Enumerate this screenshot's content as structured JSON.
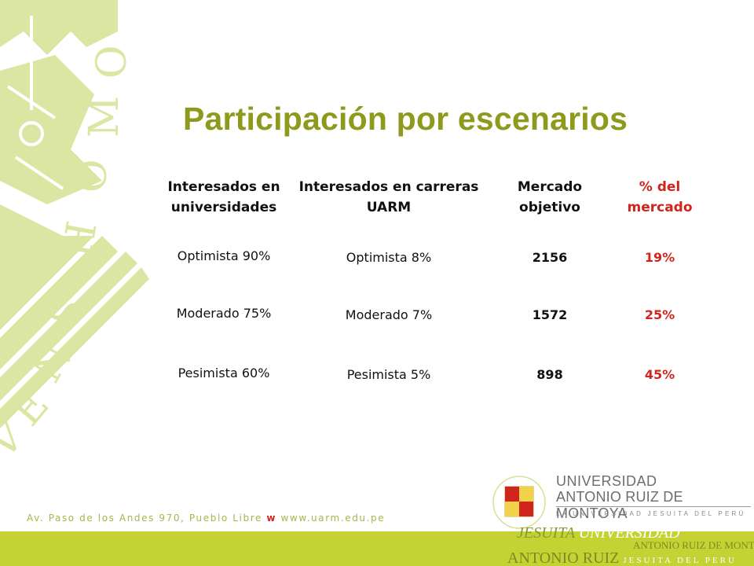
{
  "slide": {
    "title": "Participación por escenarios"
  },
  "table": {
    "headers": [
      "Interesados en universidades",
      "Interesados en carreras UARM",
      "Mercado objetivo",
      "% del mercado"
    ],
    "rows": [
      [
        "Optimista 90%",
        "Optimista 8%",
        "2156",
        "19%"
      ],
      [
        "Moderado 75%",
        "Moderado 7%",
        "1572",
        "25%"
      ],
      [
        "Pesimista 60%",
        "Pesimista 5%",
        "898",
        "45%"
      ]
    ]
  },
  "footer": {
    "address_a": "Av. Paso de los Andes 970, Pueblo Libre",
    "address_w": "w",
    "address_b": "www.uarm.edu.pe"
  },
  "logo": {
    "name_line1": "UNIVERSIDAD",
    "name_line2": "ANTONIO RUIZ DE MONTOYA",
    "tagline": "LA UNIVERSIDAD JESUITA DEL PERÚ",
    "seal_text": "GLORIA DEI VIVENS HOMO"
  },
  "colors": {
    "title": "#8e9a1c",
    "accent_red": "#d0251c",
    "decor_green": "#d8e49a",
    "band_green": "#c5d234"
  }
}
